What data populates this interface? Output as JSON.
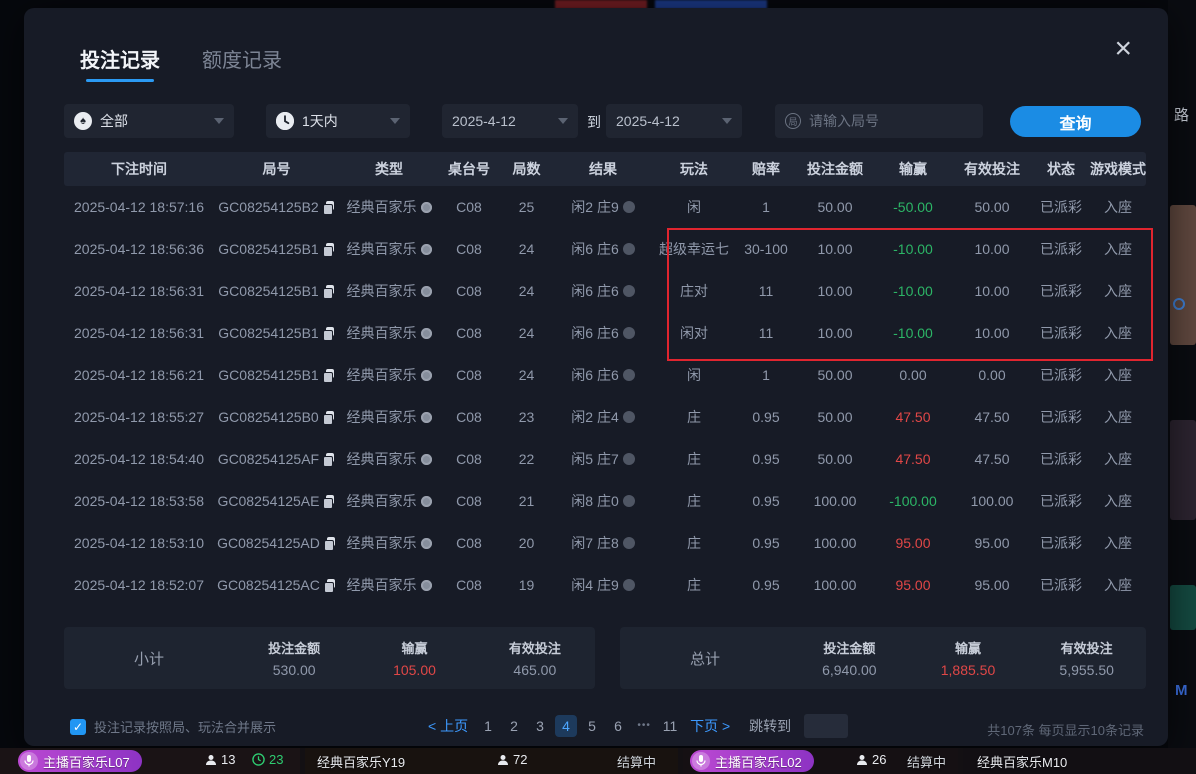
{
  "modal": {
    "tabs": [
      {
        "label": "投注记录",
        "active": true
      },
      {
        "label": "额度记录",
        "active": false
      }
    ],
    "close_glyph": "×",
    "filters": {
      "game_type_value": "全部",
      "time_range_value": "1天内",
      "date_from": "2025-4-12",
      "to_label": "到",
      "date_to": "2025-4-12",
      "round_placeholder": "请输入局号",
      "round_icon_char": "局",
      "search_button": "查询"
    },
    "table": {
      "headers": [
        "下注时间",
        "局号",
        "类型",
        "桌台号",
        "局数",
        "结果",
        "玩法",
        "赔率",
        "投注金额",
        "输赢",
        "有效投注",
        "状态",
        "游戏模式"
      ],
      "rows": [
        {
          "time": "2025-04-12 18:57:16",
          "round_id": "GC08254125B2",
          "type": "经典百家乐",
          "table_no": "C08",
          "round_no": "25",
          "result": "闲2 庄9",
          "play": "闲",
          "odds": "1",
          "bet": "50.00",
          "winloss": "-50.00",
          "winloss_color": "green",
          "valid": "50.00",
          "status": "已派彩",
          "mode": "入座"
        },
        {
          "time": "2025-04-12 18:56:36",
          "round_id": "GC08254125B1",
          "type": "经典百家乐",
          "table_no": "C08",
          "round_no": "24",
          "result": "闲6 庄6",
          "play": "超级幸运七",
          "odds": "30-100",
          "bet": "10.00",
          "winloss": "-10.00",
          "winloss_color": "green",
          "valid": "10.00",
          "status": "已派彩",
          "mode": "入座"
        },
        {
          "time": "2025-04-12 18:56:31",
          "round_id": "GC08254125B1",
          "type": "经典百家乐",
          "table_no": "C08",
          "round_no": "24",
          "result": "闲6 庄6",
          "play": "庄对",
          "odds": "11",
          "bet": "10.00",
          "winloss": "-10.00",
          "winloss_color": "green",
          "valid": "10.00",
          "status": "已派彩",
          "mode": "入座"
        },
        {
          "time": "2025-04-12 18:56:31",
          "round_id": "GC08254125B1",
          "type": "经典百家乐",
          "table_no": "C08",
          "round_no": "24",
          "result": "闲6 庄6",
          "play": "闲对",
          "odds": "11",
          "bet": "10.00",
          "winloss": "-10.00",
          "winloss_color": "green",
          "valid": "10.00",
          "status": "已派彩",
          "mode": "入座"
        },
        {
          "time": "2025-04-12 18:56:21",
          "round_id": "GC08254125B1",
          "type": "经典百家乐",
          "table_no": "C08",
          "round_no": "24",
          "result": "闲6 庄6",
          "play": "闲",
          "odds": "1",
          "bet": "50.00",
          "winloss": "0.00",
          "winloss_color": "neutral",
          "valid": "0.00",
          "status": "已派彩",
          "mode": "入座"
        },
        {
          "time": "2025-04-12 18:55:27",
          "round_id": "GC08254125B0",
          "type": "经典百家乐",
          "table_no": "C08",
          "round_no": "23",
          "result": "闲2 庄4",
          "play": "庄",
          "odds": "0.95",
          "bet": "50.00",
          "winloss": "47.50",
          "winloss_color": "red",
          "valid": "47.50",
          "status": "已派彩",
          "mode": "入座"
        },
        {
          "time": "2025-04-12 18:54:40",
          "round_id": "GC08254125AF",
          "type": "经典百家乐",
          "table_no": "C08",
          "round_no": "22",
          "result": "闲5 庄7",
          "play": "庄",
          "odds": "0.95",
          "bet": "50.00",
          "winloss": "47.50",
          "winloss_color": "red",
          "valid": "47.50",
          "status": "已派彩",
          "mode": "入座"
        },
        {
          "time": "2025-04-12 18:53:58",
          "round_id": "GC08254125AE",
          "type": "经典百家乐",
          "table_no": "C08",
          "round_no": "21",
          "result": "闲8 庄0",
          "play": "庄",
          "odds": "0.95",
          "bet": "100.00",
          "winloss": "-100.00",
          "winloss_color": "green",
          "valid": "100.00",
          "status": "已派彩",
          "mode": "入座"
        },
        {
          "time": "2025-04-12 18:53:10",
          "round_id": "GC08254125AD",
          "type": "经典百家乐",
          "table_no": "C08",
          "round_no": "20",
          "result": "闲7 庄8",
          "play": "庄",
          "odds": "0.95",
          "bet": "100.00",
          "winloss": "95.00",
          "winloss_color": "red",
          "valid": "95.00",
          "status": "已派彩",
          "mode": "入座"
        },
        {
          "time": "2025-04-12 18:52:07",
          "round_id": "GC08254125AC",
          "type": "经典百家乐",
          "table_no": "C08",
          "round_no": "19",
          "result": "闲4 庄9",
          "play": "庄",
          "odds": "0.95",
          "bet": "100.00",
          "winloss": "95.00",
          "winloss_color": "red",
          "valid": "95.00",
          "status": "已派彩",
          "mode": "入座"
        }
      ]
    },
    "subtotal": {
      "label": "小计",
      "bet_label": "投注金额",
      "bet": "530.00",
      "winloss_label": "输赢",
      "winloss": "105.00",
      "valid_label": "有效投注",
      "valid": "465.00"
    },
    "total": {
      "label": "总计",
      "bet_label": "投注金额",
      "bet": "6,940.00",
      "winloss_label": "输赢",
      "winloss": "1,885.50",
      "valid_label": "有效投注",
      "valid": "5,955.50"
    },
    "footer": {
      "merge_checkbox_label": "投注记录按照局、玩法合并展示",
      "merge_checked": true,
      "check_glyph": "✓",
      "pagination": {
        "prev": "< 上页",
        "pages": [
          "1",
          "2",
          "3",
          "4",
          "5",
          "6",
          "•••",
          "11"
        ],
        "active": "4",
        "next": "下页 >",
        "jump_label": "跳转到"
      },
      "count_summary": "共107条  每页显示10条记录"
    }
  },
  "background": {
    "right_edge_text": "路",
    "tiles": [
      {
        "label": "主播百家乐L07",
        "viewers": "13",
        "countdown": "23"
      },
      {
        "label": "经典百家乐Y19",
        "viewers": "72",
        "status": "结算中"
      },
      {
        "label": "主播百家乐L02",
        "viewers": "26",
        "status": "结算中"
      },
      {
        "label": "经典百家乐M10"
      }
    ]
  },
  "icons": {
    "spade": "♠"
  },
  "colors": {
    "accent_blue": "#1b8ce4",
    "win_red": "#e04747",
    "loss_green": "#2cb566",
    "annotation_red": "#e0252f",
    "pill_purple": "#a93ec1"
  }
}
